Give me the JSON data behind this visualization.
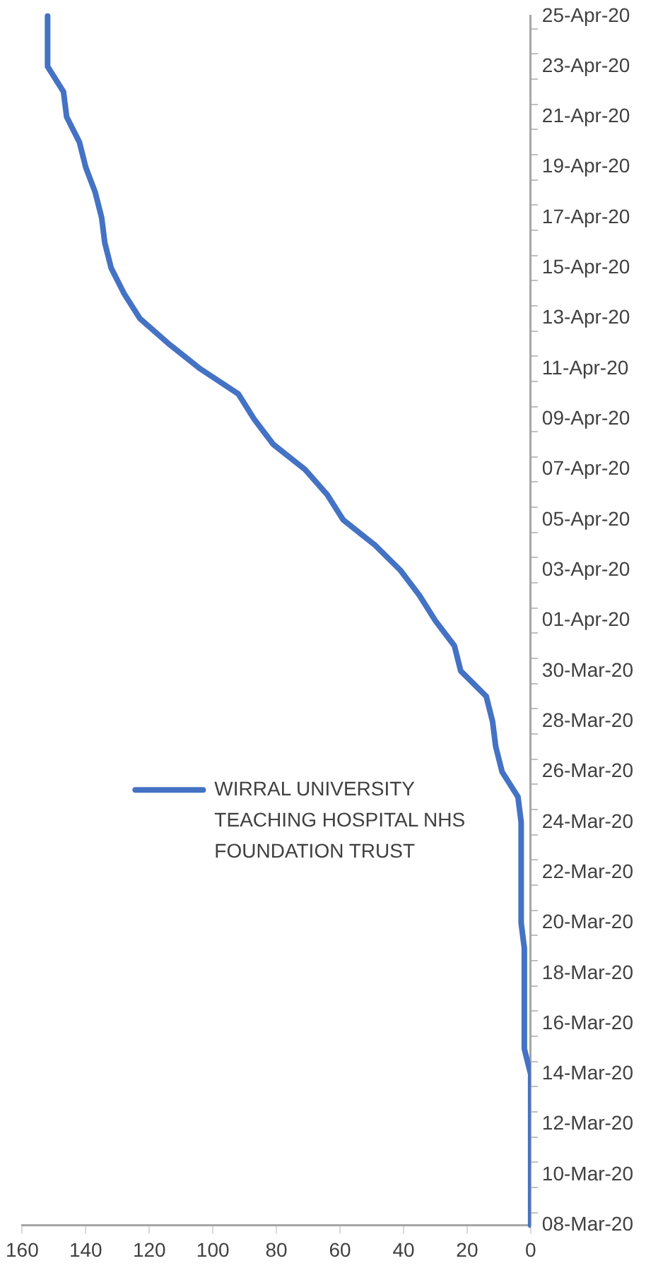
{
  "chart_data": {
    "type": "line",
    "orientation": "horizontal",
    "categories": [
      "25-Apr-20",
      null,
      "23-Apr-20",
      null,
      "21-Apr-20",
      null,
      "19-Apr-20",
      null,
      "17-Apr-20",
      null,
      "15-Apr-20",
      null,
      "13-Apr-20",
      null,
      "11-Apr-20",
      null,
      "09-Apr-20",
      null,
      "07-Apr-20",
      null,
      "05-Apr-20",
      null,
      "03-Apr-20",
      null,
      "01-Apr-20",
      null,
      "30-Mar-20",
      null,
      "28-Mar-20",
      null,
      "26-Mar-20",
      null,
      "24-Mar-20",
      null,
      "22-Mar-20",
      null,
      "20-Mar-20",
      null,
      "18-Mar-20",
      null,
      "16-Mar-20",
      null,
      "14-Mar-20",
      null,
      "12-Mar-20",
      null,
      "10-Mar-20",
      null,
      "08-Mar-20"
    ],
    "series": [
      {
        "name": "WIRRAL UNIVERSITY TEACHING HOSPITAL NHS FOUNDATION TRUST",
        "color": "#4472c4",
        "values": [
          152,
          152,
          152,
          147,
          146,
          142,
          140,
          137,
          135,
          134,
          132,
          128,
          123,
          114,
          104,
          92,
          87,
          81,
          71,
          64,
          59,
          49,
          41,
          35,
          30,
          24,
          22,
          14,
          12,
          11,
          9,
          4,
          3,
          3,
          3,
          3,
          3,
          2,
          2,
          2,
          2,
          2,
          0,
          0,
          0,
          0,
          0,
          0,
          0
        ]
      }
    ],
    "xlim": [
      160,
      0
    ],
    "xticks": [
      160,
      140,
      120,
      100,
      80,
      60,
      40,
      20,
      0
    ],
    "grid": false,
    "legend": "left",
    "marker": "none",
    "line_style": "solid"
  }
}
